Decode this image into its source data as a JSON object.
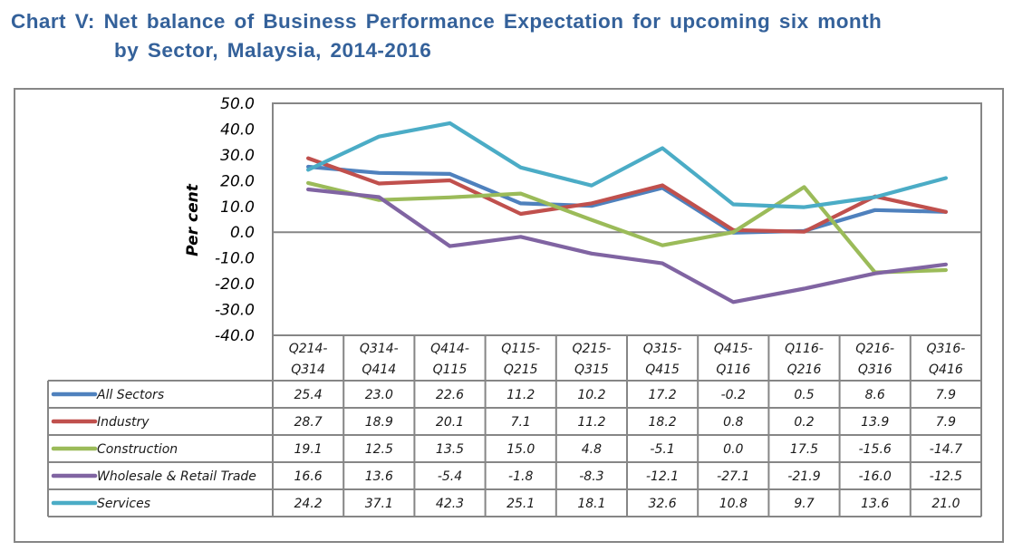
{
  "title": {
    "line1": "Chart V: Net balance of Business Performance Expectation for upcoming six month",
    "line2": "by Sector, Malaysia, 2014-2016"
  },
  "chart_data": {
    "type": "line",
    "title": "Chart V: Net balance of Business Performance Expectation for upcoming six month by Sector, Malaysia, 2014-2016",
    "xlabel": "",
    "ylabel": "Per cent",
    "ylim": [
      -40,
      50
    ],
    "yticks": [
      50,
      40,
      30,
      20,
      10,
      0,
      -10,
      -20,
      -30,
      -40
    ],
    "ytick_labels": [
      "50.0",
      "40.0",
      "30.0",
      "20.0",
      "10.0",
      "0.0",
      "-10.0",
      "-20.0",
      "-30.0",
      "-40.0"
    ],
    "grid": "zero line only",
    "legend": "data table below chart",
    "categories": [
      [
        "Q214-",
        "Q314"
      ],
      [
        "Q314-",
        "Q414"
      ],
      [
        "Q414-",
        "Q115"
      ],
      [
        "Q115-",
        "Q215"
      ],
      [
        "Q215-",
        "Q315"
      ],
      [
        "Q315-",
        "Q415"
      ],
      [
        "Q415-",
        "Q116"
      ],
      [
        "Q116-",
        "Q216"
      ],
      [
        "Q216-",
        "Q316"
      ],
      [
        "Q316-",
        "Q416"
      ]
    ],
    "series": [
      {
        "name": "All Sectors",
        "color": "#4F81BD",
        "values": [
          25.4,
          23.0,
          22.6,
          11.2,
          10.2,
          17.2,
          -0.2,
          0.5,
          8.6,
          7.9
        ],
        "labels": [
          "25.4",
          "23.0",
          "22.6",
          "11.2",
          "10.2",
          "17.2",
          "-0.2",
          "0.5",
          "8.6",
          "7.9"
        ]
      },
      {
        "name": "Industry",
        "color": "#C0504D",
        "values": [
          28.7,
          18.9,
          20.1,
          7.1,
          11.2,
          18.2,
          0.8,
          0.2,
          13.9,
          7.9
        ],
        "labels": [
          "28.7",
          "18.9",
          "20.1",
          "7.1",
          "11.2",
          "18.2",
          "0.8",
          "0.2",
          "13.9",
          "7.9"
        ]
      },
      {
        "name": "Construction",
        "color": "#9BBB59",
        "values": [
          19.1,
          12.5,
          13.5,
          15.0,
          4.8,
          -5.1,
          0.0,
          17.5,
          -15.6,
          -14.7
        ],
        "labels": [
          "19.1",
          "12.5",
          "13.5",
          "15.0",
          "4.8",
          "-5.1",
          "0.0",
          "17.5",
          "-15.6",
          "-14.7"
        ]
      },
      {
        "name": "Wholesale & Retail Trade",
        "color": "#8064A2",
        "values": [
          16.6,
          13.6,
          -5.4,
          -1.8,
          -8.3,
          -12.1,
          -27.1,
          -21.9,
          -16.0,
          -12.5
        ],
        "labels": [
          "16.6",
          "13.6",
          "-5.4",
          "-1.8",
          "-8.3",
          "-12.1",
          "-27.1",
          "-21.9",
          "-16.0",
          "-12.5"
        ]
      },
      {
        "name": "Services",
        "color": "#4BACC6",
        "values": [
          24.2,
          37.1,
          42.3,
          25.1,
          18.1,
          32.6,
          10.8,
          9.7,
          13.6,
          21.0
        ],
        "labels": [
          "24.2",
          "37.1",
          "42.3",
          "25.1",
          "18.1",
          "32.6",
          "10.8",
          "9.7",
          "13.6",
          "21.0"
        ]
      }
    ]
  },
  "colors": {
    "title": "#34619A",
    "frame": "#868686"
  }
}
